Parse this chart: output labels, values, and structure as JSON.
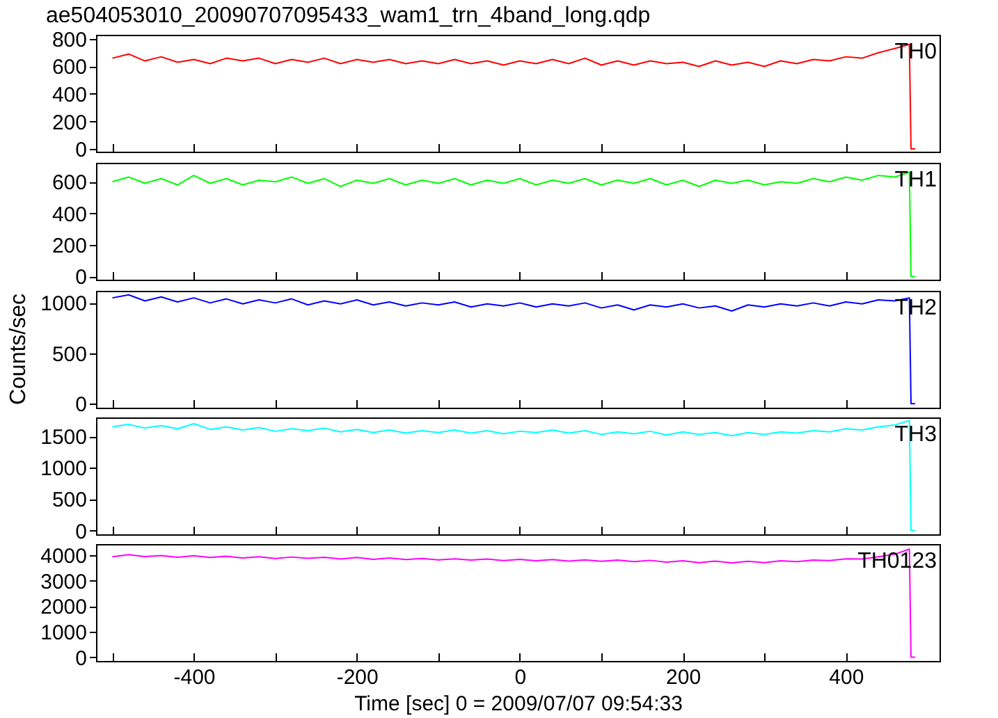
{
  "chart_data": [
    {
      "type": "line",
      "title": "ae504053010_20090707095433_wam1_trn_4band_long.qdp",
      "tick_labels": "y",
      "grid": false,
      "legend": false,
      "xlim": [
        -520,
        515
      ],
      "xticks": [
        {
          "value": -500,
          "label": null
        },
        -400,
        {
          "value": -300,
          "label": null
        },
        -200,
        {
          "value": -100,
          "label": null
        },
        0,
        {
          "value": 100,
          "label": null
        },
        200,
        {
          "value": 300,
          "label": null
        },
        400
      ],
      "ylim": [
        -20,
        830
      ],
      "yticks": [
        0,
        200,
        400,
        600,
        800
      ],
      "x": [
        -500,
        -480,
        -460,
        -440,
        -420,
        -400,
        -380,
        -360,
        -340,
        -320,
        -300,
        -280,
        -260,
        -240,
        -220,
        -200,
        -180,
        -160,
        -140,
        -120,
        -100,
        -80,
        -60,
        -40,
        -20,
        0,
        20,
        40,
        60,
        80,
        100,
        120,
        140,
        160,
        180,
        200,
        220,
        240,
        260,
        280,
        300,
        320,
        340,
        360,
        380,
        400,
        420,
        440,
        460,
        478,
        480,
        485
      ],
      "series": [
        {
          "name": "TH0",
          "color": "#ff0000",
          "values": [
            660,
            690,
            640,
            670,
            630,
            650,
            620,
            660,
            640,
            660,
            620,
            650,
            630,
            660,
            620,
            650,
            630,
            650,
            620,
            640,
            620,
            650,
            620,
            640,
            610,
            640,
            620,
            650,
            620,
            660,
            610,
            640,
            610,
            640,
            620,
            630,
            600,
            640,
            610,
            630,
            600,
            640,
            620,
            650,
            640,
            670,
            660,
            700,
            730,
            760,
            0,
            0
          ]
        }
      ]
    },
    {
      "type": "line",
      "tick_labels": "y",
      "grid": false,
      "legend": false,
      "xlim": [
        -520,
        515
      ],
      "xticks": [
        {
          "value": -500,
          "label": null
        },
        -400,
        {
          "value": -300,
          "label": null
        },
        -200,
        {
          "value": -100,
          "label": null
        },
        0,
        {
          "value": 100,
          "label": null
        },
        200,
        {
          "value": 300,
          "label": null
        },
        400
      ],
      "ylim": [
        -20,
        720
      ],
      "yticks": [
        0,
        200,
        400,
        600
      ],
      "x": [
        -500,
        -480,
        -460,
        -440,
        -420,
        -400,
        -380,
        -360,
        -340,
        -320,
        -300,
        -280,
        -260,
        -240,
        -220,
        -200,
        -180,
        -160,
        -140,
        -120,
        -100,
        -80,
        -60,
        -40,
        -20,
        0,
        20,
        40,
        60,
        80,
        100,
        120,
        140,
        160,
        180,
        200,
        220,
        240,
        260,
        280,
        300,
        320,
        340,
        360,
        380,
        400,
        420,
        440,
        460,
        478,
        480,
        485
      ],
      "series": [
        {
          "name": "TH1",
          "color": "#00ff00",
          "values": [
            600,
            630,
            590,
            620,
            580,
            640,
            590,
            620,
            580,
            610,
            600,
            630,
            590,
            620,
            570,
            610,
            590,
            620,
            580,
            610,
            590,
            620,
            580,
            610,
            590,
            620,
            580,
            610,
            590,
            620,
            580,
            610,
            590,
            620,
            580,
            610,
            570,
            610,
            590,
            610,
            580,
            600,
            590,
            620,
            600,
            630,
            610,
            640,
            630,
            660,
            0,
            0
          ]
        }
      ]
    },
    {
      "type": "line",
      "tick_labels": "y",
      "grid": false,
      "legend": false,
      "ylabel": "Counts/sec",
      "xlim": [
        -520,
        515
      ],
      "xticks": [
        {
          "value": -500,
          "label": null
        },
        -400,
        {
          "value": -300,
          "label": null
        },
        -200,
        {
          "value": -100,
          "label": null
        },
        0,
        {
          "value": 100,
          "label": null
        },
        200,
        {
          "value": 300,
          "label": null
        },
        400
      ],
      "ylim": [
        -40,
        1120
      ],
      "yticks": [
        0,
        500,
        1000
      ],
      "x": [
        -500,
        -480,
        -460,
        -440,
        -420,
        -400,
        -380,
        -360,
        -340,
        -320,
        -300,
        -280,
        -260,
        -240,
        -220,
        -200,
        -180,
        -160,
        -140,
        -120,
        -100,
        -80,
        -60,
        -40,
        -20,
        0,
        20,
        40,
        60,
        80,
        100,
        120,
        140,
        160,
        180,
        200,
        220,
        240,
        260,
        280,
        300,
        320,
        340,
        360,
        380,
        400,
        420,
        440,
        460,
        478,
        480,
        485
      ],
      "series": [
        {
          "name": "TH2",
          "color": "#0000ff",
          "values": [
            1050,
            1080,
            1020,
            1060,
            1010,
            1050,
            1000,
            1040,
            990,
            1030,
            1000,
            1040,
            980,
            1020,
            990,
            1030,
            980,
            1010,
            970,
            1000,
            980,
            1010,
            960,
            990,
            970,
            1000,
            960,
            990,
            970,
            1000,
            950,
            980,
            930,
            980,
            960,
            990,
            950,
            970,
            920,
            980,
            960,
            990,
            970,
            1000,
            970,
            1010,
            990,
            1030,
            1020,
            1050,
            0,
            0
          ]
        }
      ]
    },
    {
      "type": "line",
      "tick_labels": "y",
      "grid": false,
      "legend": false,
      "xlim": [
        -520,
        515
      ],
      "xticks": [
        {
          "value": -500,
          "label": null
        },
        -400,
        {
          "value": -300,
          "label": null
        },
        -200,
        {
          "value": -100,
          "label": null
        },
        0,
        {
          "value": 100,
          "label": null
        },
        200,
        {
          "value": 300,
          "label": null
        },
        400
      ],
      "ylim": [
        -60,
        1800
      ],
      "yticks": [
        0,
        500,
        1000,
        1500
      ],
      "x": [
        -500,
        -480,
        -460,
        -440,
        -420,
        -400,
        -380,
        -360,
        -340,
        -320,
        -300,
        -280,
        -260,
        -240,
        -220,
        -200,
        -180,
        -160,
        -140,
        -120,
        -100,
        -80,
        -60,
        -40,
        -20,
        0,
        20,
        40,
        60,
        80,
        100,
        120,
        140,
        160,
        180,
        200,
        220,
        240,
        260,
        280,
        300,
        320,
        340,
        360,
        380,
        400,
        420,
        440,
        460,
        478,
        480,
        485
      ],
      "series": [
        {
          "name": "TH3",
          "color": "#00ffff",
          "values": [
            1650,
            1690,
            1630,
            1670,
            1620,
            1700,
            1610,
            1650,
            1600,
            1640,
            1580,
            1620,
            1590,
            1630,
            1570,
            1610,
            1560,
            1600,
            1550,
            1590,
            1560,
            1600,
            1550,
            1590,
            1540,
            1580,
            1560,
            1600,
            1550,
            1590,
            1530,
            1570,
            1540,
            1580,
            1520,
            1570,
            1530,
            1560,
            1510,
            1560,
            1530,
            1570,
            1550,
            1590,
            1570,
            1620,
            1600,
            1650,
            1680,
            1750,
            0,
            0
          ]
        }
      ]
    },
    {
      "type": "line",
      "xlabel": "Time [sec] 0 = 2009/07/07 09:54:33",
      "grid": false,
      "legend": false,
      "xlim": [
        -520,
        515
      ],
      "xticks": [
        {
          "value": -500,
          "label": null
        },
        -400,
        {
          "value": -300,
          "label": null
        },
        -200,
        {
          "value": -100,
          "label": null
        },
        0,
        {
          "value": 100,
          "label": null
        },
        200,
        {
          "value": 300,
          "label": null
        },
        400
      ],
      "ylim": [
        -150,
        4450
      ],
      "yticks": [
        0,
        1000,
        2000,
        3000,
        4000
      ],
      "x": [
        -500,
        -480,
        -460,
        -440,
        -420,
        -400,
        -380,
        -360,
        -340,
        -320,
        -300,
        -280,
        -260,
        -240,
        -220,
        -200,
        -180,
        -160,
        -140,
        -120,
        -100,
        -80,
        -60,
        -40,
        -20,
        0,
        20,
        40,
        60,
        80,
        100,
        120,
        140,
        160,
        180,
        200,
        220,
        240,
        260,
        280,
        300,
        320,
        340,
        360,
        380,
        400,
        420,
        440,
        460,
        478,
        480,
        485
      ],
      "series": [
        {
          "name": "TH0123",
          "color": "#ff00ff",
          "values": [
            3950,
            4030,
            3960,
            4000,
            3930,
            3990,
            3920,
            3970,
            3900,
            3950,
            3880,
            3940,
            3890,
            3930,
            3860,
            3920,
            3850,
            3900,
            3840,
            3880,
            3830,
            3870,
            3820,
            3860,
            3800,
            3850,
            3790,
            3840,
            3780,
            3830,
            3770,
            3820,
            3760,
            3810,
            3740,
            3790,
            3720,
            3780,
            3710,
            3770,
            3720,
            3790,
            3760,
            3820,
            3800,
            3870,
            3860,
            3950,
            4050,
            4250,
            0,
            0
          ]
        }
      ]
    }
  ]
}
